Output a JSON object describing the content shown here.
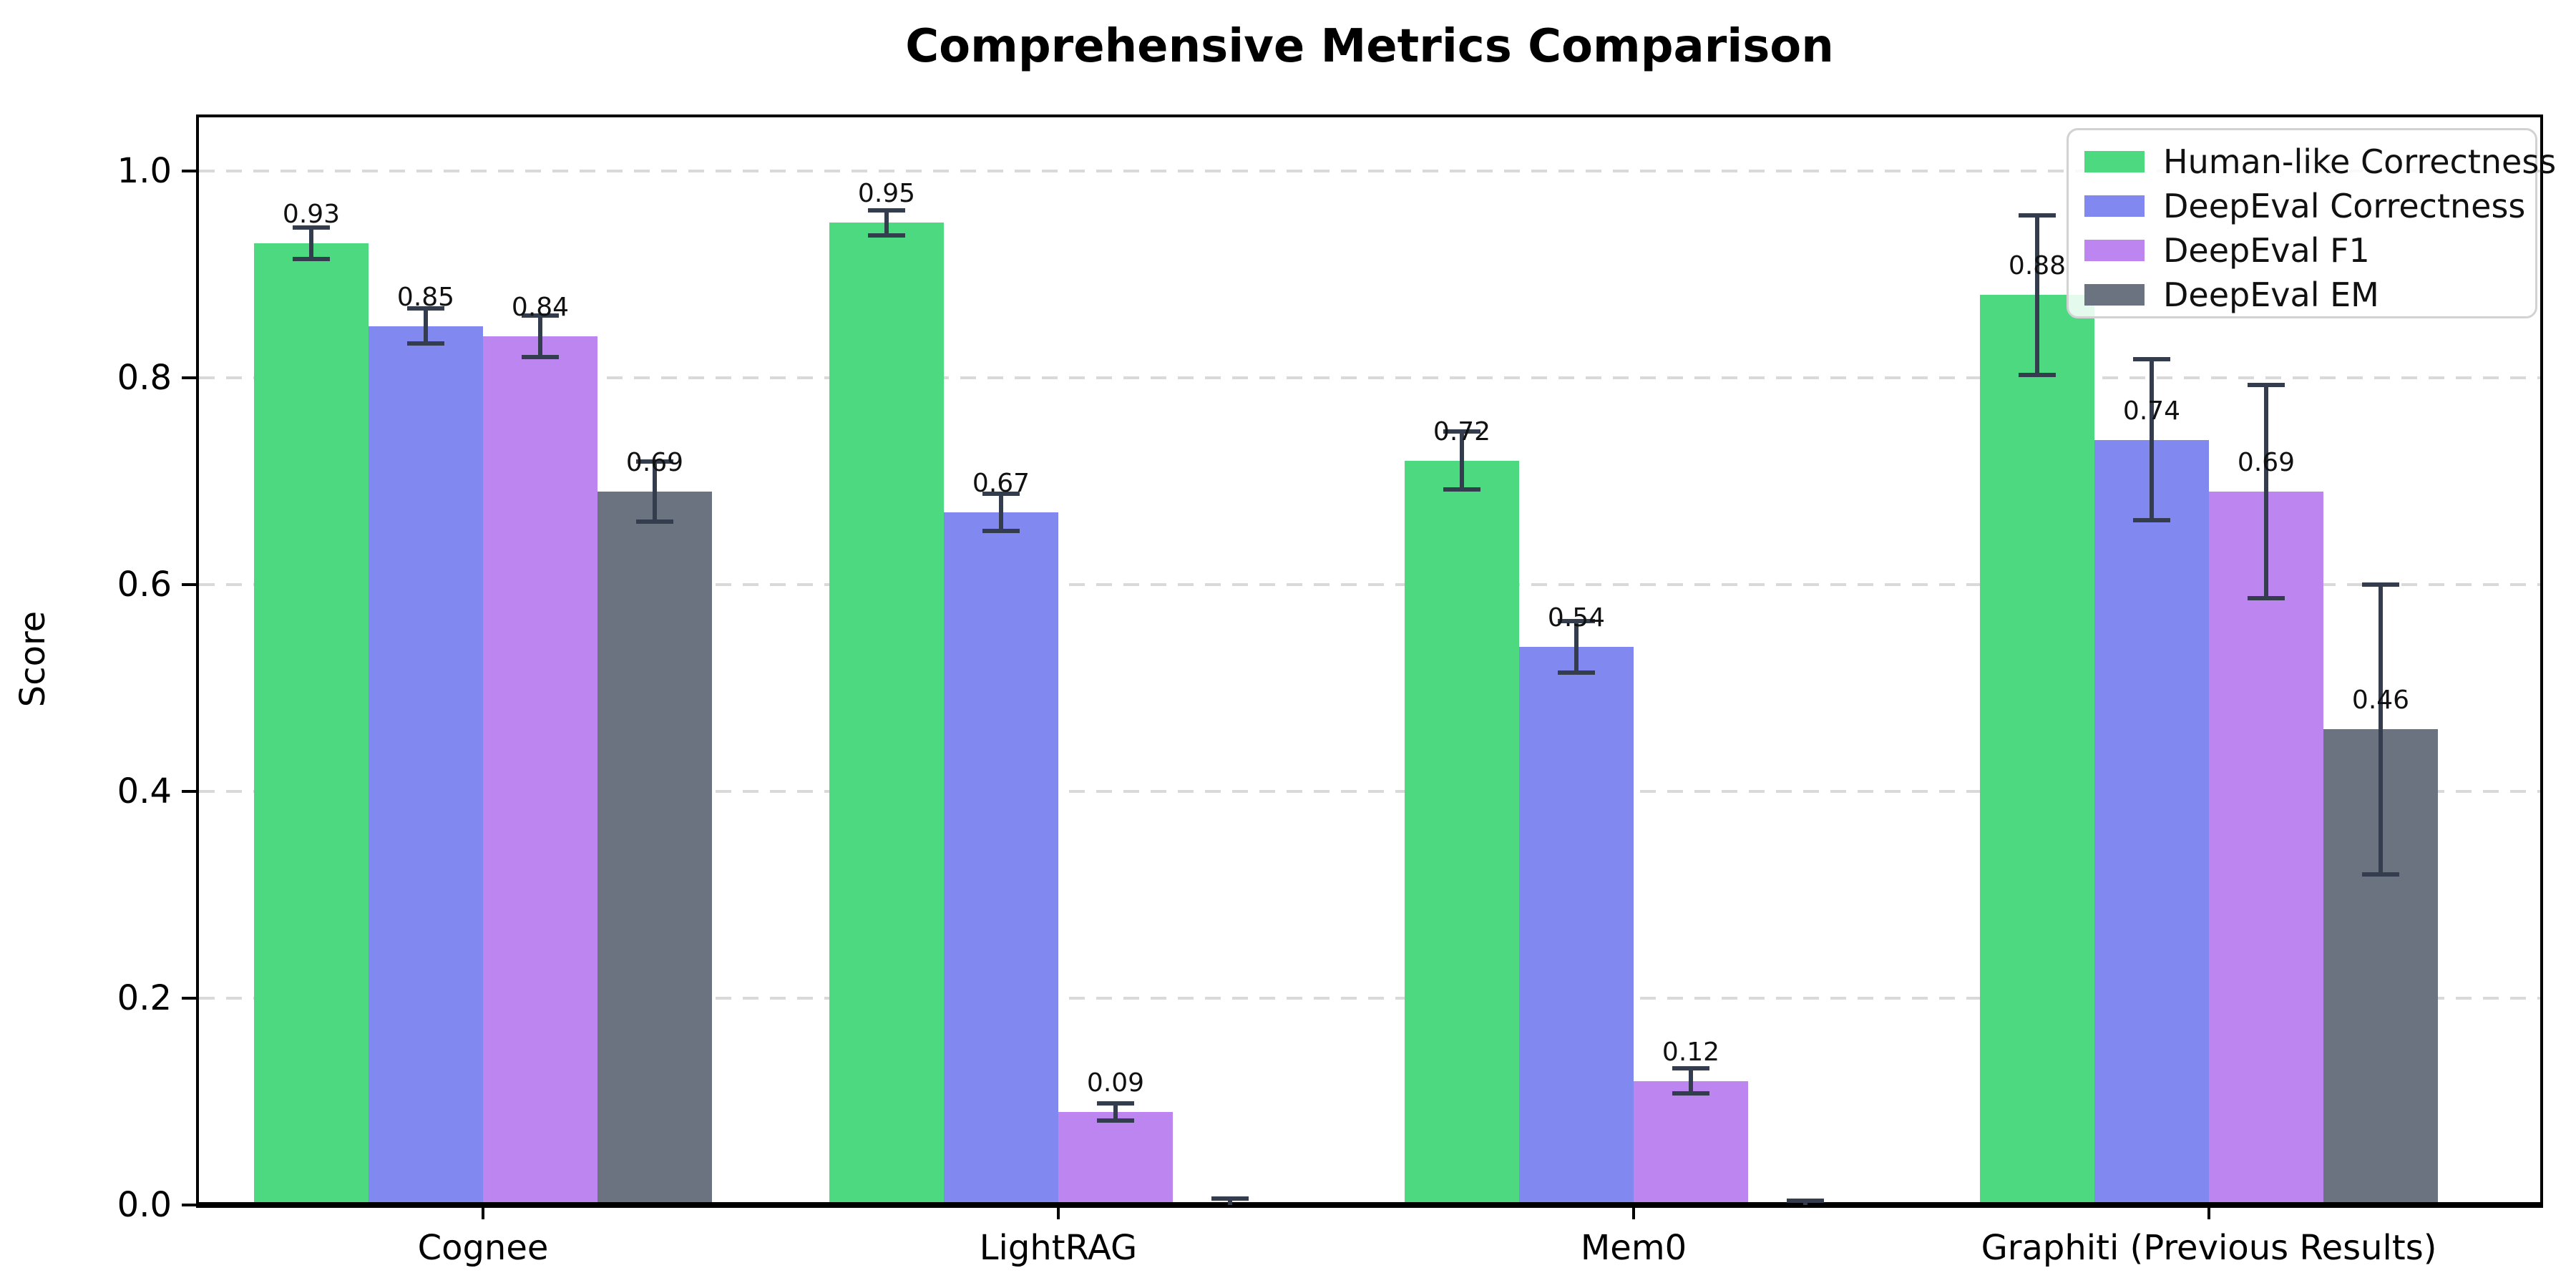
{
  "chart_data": {
    "type": "bar",
    "title": "Comprehensive Metrics Comparison",
    "ylabel": "Score",
    "xlabel": "",
    "categories": [
      "Cognee",
      "LightRAG",
      "Mem0",
      "Graphiti (Previous Results)"
    ],
    "series": [
      {
        "name": "Human-like Correctness",
        "color": "#4cd97f",
        "values": [
          0.93,
          0.95,
          0.72,
          0.88
        ],
        "errors": [
          0.015,
          0.012,
          0.028,
          0.077
        ],
        "labels": [
          "0.93",
          "0.95",
          "0.72",
          "0.88"
        ]
      },
      {
        "name": "DeepEval Correctness",
        "color": "#8189f0",
        "values": [
          0.85,
          0.67,
          0.54,
          0.74
        ],
        "errors": [
          0.017,
          0.018,
          0.025,
          0.078
        ],
        "labels": [
          "0.85",
          "0.67",
          "0.54",
          "0.74"
        ]
      },
      {
        "name": "DeepEval F1",
        "color": "#bd85f0",
        "values": [
          0.84,
          0.09,
          0.12,
          0.69
        ],
        "errors": [
          0.02,
          0.008,
          0.012,
          0.103
        ],
        "labels": [
          "0.84",
          "0.09",
          "0.12",
          "0.69"
        ]
      },
      {
        "name": "DeepEval EM",
        "color": "#6b7280",
        "values": [
          0.69,
          0.0,
          0.0,
          0.46
        ],
        "errors": [
          0.029,
          0.006,
          0.004,
          0.14
        ],
        "labels": [
          "0.69",
          "",
          "",
          "0.46"
        ]
      }
    ],
    "yticks": [
      "0.0",
      "0.2",
      "0.4",
      "0.6",
      "0.8",
      "1.0"
    ],
    "ylim": [
      0,
      1.06
    ],
    "grid": "horizontal-dashed",
    "grid_color": "#d9d9d9",
    "legend_position": "upper-right",
    "errorbar_color": "#333d4d",
    "background": "#ffffff"
  }
}
